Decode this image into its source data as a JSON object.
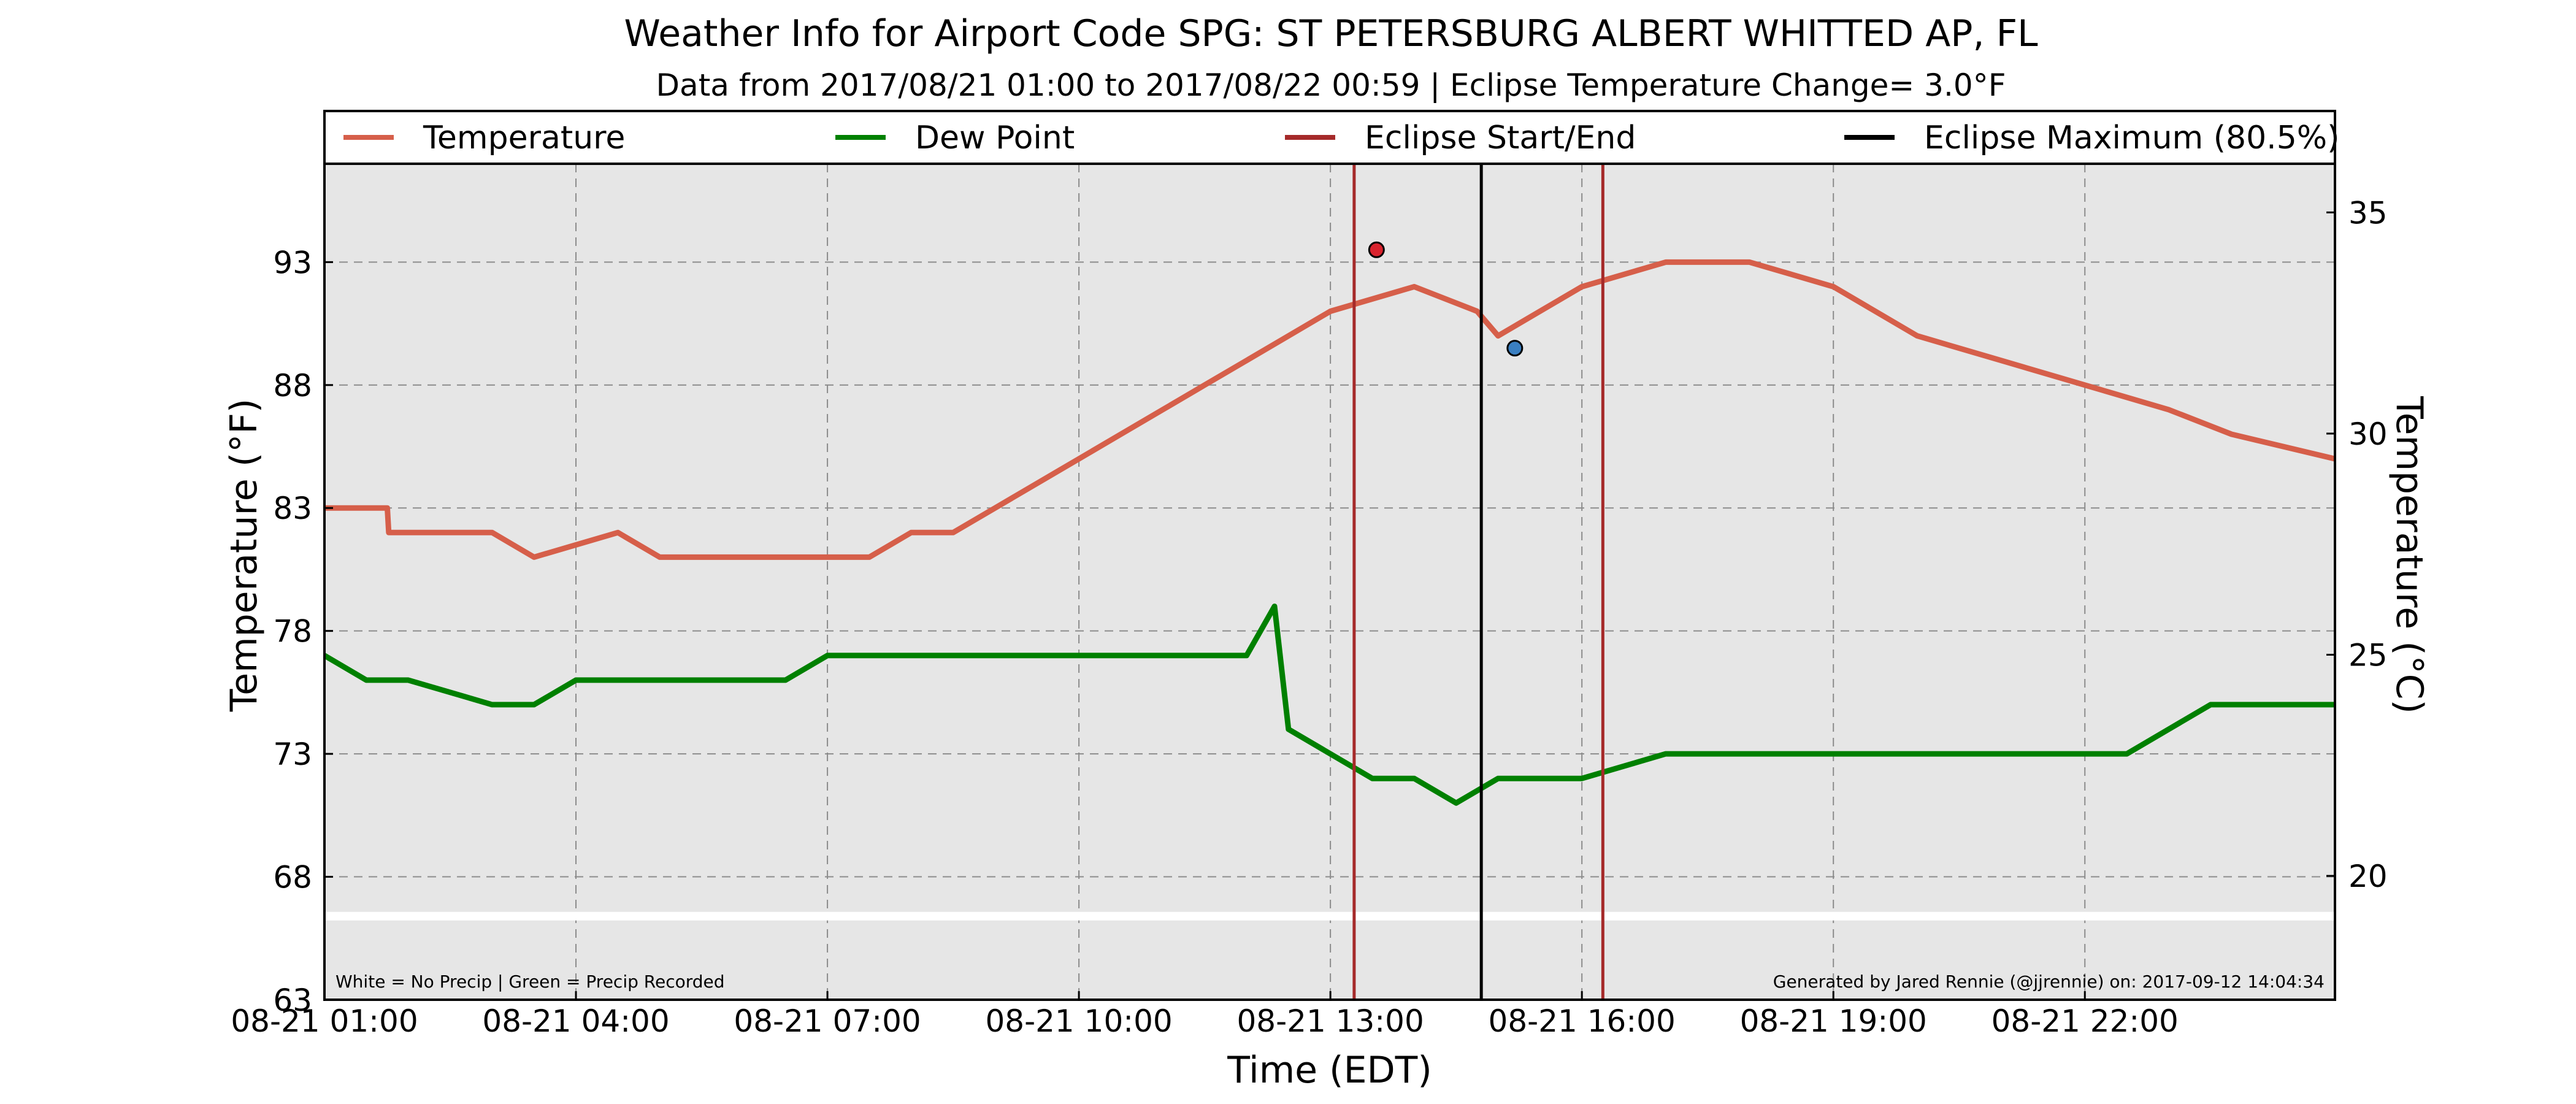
{
  "chart_data": {
    "type": "line",
    "title": "Weather Info for Airport Code SPG: ST PETERSBURG ALBERT WHITTED AP, FL",
    "subtitle": "Data from 2017/08/21 01:00 to 2017/08/22 00:59 | Eclipse Temperature Change= 3.0°F",
    "xlabel": "Time (EDT)",
    "ylabel": "Temperature (°F)",
    "y2label": "Temperature (°C)",
    "xlim": [
      "08-21 01:00",
      "08-22 00:59"
    ],
    "ylim": [
      63,
      97
    ],
    "y2lim": [
      17.2,
      36.1
    ],
    "grid": true,
    "legend_placement": "top",
    "x_ticks": [
      "08-21 01:00",
      "08-21 04:00",
      "08-21 07:00",
      "08-21 10:00",
      "08-21 13:00",
      "08-21 16:00",
      "08-21 19:00",
      "08-21 22:00"
    ],
    "y_ticks": [
      63,
      68,
      73,
      78,
      83,
      88,
      93
    ],
    "y2_ticks": [
      20,
      25,
      30,
      35
    ],
    "legend": [
      {
        "name": "Temperature",
        "color": "#d65f4a"
      },
      {
        "name": "Dew Point",
        "color": "#008000"
      },
      {
        "name": "Eclipse Start/End",
        "color": "#a52a2a"
      },
      {
        "name": "Eclipse Maximum (80.5%)",
        "color": "#000000"
      }
    ],
    "series": [
      {
        "name": "Temperature",
        "color": "#d65f4a",
        "x": [
          "08-21 01:00",
          "08-21 01:45",
          "08-21 01:46",
          "08-21 03:00",
          "08-21 03:30",
          "08-21 04:30",
          "08-21 05:00",
          "08-21 07:00",
          "08-21 07:30",
          "08-21 08:00",
          "08-21 08:30",
          "08-21 09:00",
          "08-21 09:30",
          "08-21 10:00",
          "08-21 10:30",
          "08-21 11:00",
          "08-21 11:30",
          "08-21 12:00",
          "08-21 12:30",
          "08-21 13:00",
          "08-21 14:00",
          "08-21 14:45",
          "08-21 15:00",
          "08-21 15:30",
          "08-21 16:00",
          "08-21 17:00",
          "08-21 18:00",
          "08-21 19:00",
          "08-21 19:30",
          "08-21 20:00",
          "08-21 21:00",
          "08-21 22:00",
          "08-21 23:00",
          "08-21 23:45",
          "08-22 00:59"
        ],
        "values": [
          83,
          83,
          82,
          82,
          81,
          82,
          81,
          81,
          81,
          82,
          82,
          83,
          84,
          85,
          86,
          87,
          88,
          89,
          90,
          91,
          92,
          91,
          90,
          91,
          92,
          93,
          93,
          92,
          91,
          90,
          89,
          88,
          87,
          86,
          85
        ]
      },
      {
        "name": "Dew Point",
        "color": "#008000",
        "x": [
          "08-21 01:00",
          "08-21 01:30",
          "08-21 02:00",
          "08-21 03:00",
          "08-21 03:30",
          "08-21 04:00",
          "08-21 05:00",
          "08-21 06:00",
          "08-21 06:30",
          "08-21 07:00",
          "08-21 09:00",
          "08-21 11:00",
          "08-21 12:00",
          "08-21 12:20",
          "08-21 12:30",
          "08-21 13:00",
          "08-21 13:30",
          "08-21 14:00",
          "08-21 14:30",
          "08-21 15:00",
          "08-21 15:30",
          "08-21 16:00",
          "08-21 17:00",
          "08-21 18:00",
          "08-21 19:00",
          "08-21 20:00",
          "08-21 21:00",
          "08-21 22:00",
          "08-21 22:30",
          "08-21 23:00",
          "08-21 23:30",
          "08-22 00:59"
        ],
        "values": [
          77,
          76,
          76,
          75,
          75,
          76,
          76,
          76,
          76,
          77,
          77,
          77,
          77,
          79,
          74,
          73,
          72,
          72,
          71,
          72,
          72,
          72,
          73,
          73,
          73,
          73,
          73,
          73,
          73,
          74,
          75,
          75
        ]
      }
    ],
    "eclipse_start": "08-21 13:17",
    "eclipse_max": "08-21 14:48",
    "eclipse_end": "08-21 16:15",
    "markers": [
      {
        "label": "max",
        "x": "08-21 13:33",
        "y": 93.5,
        "color": "#d9232e"
      },
      {
        "label": "min",
        "x": "08-21 15:12",
        "y": 89.5,
        "color": "#3a7fc1"
      }
    ],
    "precip_band_colors": {
      "none": "#ffffff",
      "recorded": "#008000"
    }
  },
  "footer_left": "White = No Precip | Green = Precip Recorded",
  "footer_right": "Generated by Jared Rennie (@jjrennie) on: 2017-09-12 14:04:34"
}
